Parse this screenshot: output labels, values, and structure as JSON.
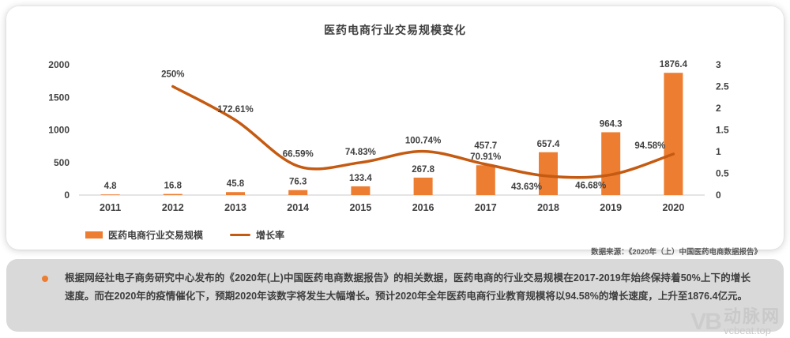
{
  "chart": {
    "title": "医药电商行业交易规模变化",
    "source": "数据来源：《2020年（上）中国医药电商数据报告》",
    "legend": [
      {
        "label": "医药电商行业交易规模",
        "type": "bar"
      },
      {
        "label": "增长率",
        "type": "line"
      }
    ]
  },
  "chart_data": {
    "type": "combo",
    "categories": [
      "2011",
      "2012",
      "2013",
      "2014",
      "2015",
      "2016",
      "2017",
      "2018",
      "2019",
      "2020"
    ],
    "series": [
      {
        "name": "医药电商行业交易规模",
        "type": "bar",
        "axis": "left",
        "values": [
          4.8,
          16.8,
          45.8,
          76.3,
          133.4,
          267.8,
          457.7,
          657.4,
          964.3,
          1876.4
        ],
        "labels": [
          "4.8",
          "16.8",
          "45.8",
          "76.3",
          "133.4",
          "267.8",
          "457.7",
          "657.4",
          "964.3",
          "1876.4"
        ],
        "color": "#ED7D31"
      },
      {
        "name": "增长率",
        "type": "line",
        "axis": "right",
        "values": [
          null,
          2.5,
          1.7261,
          0.6659,
          0.7483,
          1.0074,
          0.7091,
          0.4363,
          0.4668,
          0.9458
        ],
        "labels": [
          "",
          "250%",
          "172.61%",
          "66.59%",
          "74.83%",
          "100.74%",
          "70.91%",
          "43.63%",
          "46.68%",
          "94.58%"
        ],
        "color": "#C55A11"
      }
    ],
    "left_axis": {
      "ticks": [
        0,
        500,
        1000,
        1500,
        2000
      ],
      "max": 2000
    },
    "right_axis": {
      "ticks": [
        0,
        0.5,
        1,
        1.5,
        2,
        2.5,
        3
      ],
      "max": 3
    },
    "grid": false,
    "legend_position": "bottom-left"
  },
  "note": {
    "text": "根据网经社电子商务研究中心发布的《2020年(上)中国医药电商数据报告》的相关数据，医药电商的行业交易规模在2017-2019年始终保持着50%上下的增长速度。而在2020年的疫情催化下，预期2020年该数字将发生大幅增长。预计2020年全年医药电商行业教育规模将以94.58%的增长速度，上升至1876.4亿元。"
  },
  "logo": {
    "mark": "VB",
    "name": "动脉网",
    "domain": "vcbeat.top"
  },
  "colors": {
    "bar": "#ED7D31",
    "line": "#C55A11",
    "bullet": "#ED7D31",
    "panel": "#D9D9D9"
  }
}
